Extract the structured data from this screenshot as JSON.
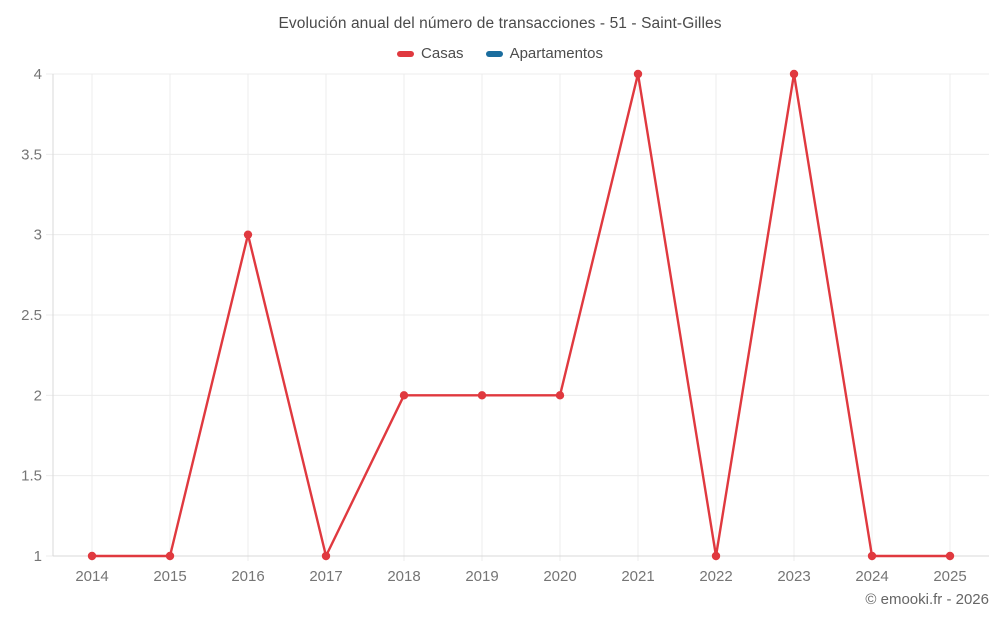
{
  "chart_data": {
    "type": "line",
    "title": "Evolución anual del número de transacciones - 51 - Saint-Gilles",
    "categories": [
      "2014",
      "2015",
      "2016",
      "2017",
      "2018",
      "2019",
      "2020",
      "2021",
      "2022",
      "2023",
      "2024",
      "2025"
    ],
    "series": [
      {
        "name": "Casas",
        "color": "#e0393f",
        "values": [
          1,
          1,
          3,
          1,
          2,
          2,
          2,
          4,
          1,
          4,
          1,
          1
        ]
      },
      {
        "name": "Apartamentos",
        "color": "#1a6d9e",
        "values": []
      }
    ],
    "ylim": [
      1,
      4
    ],
    "yticks": [
      "1",
      "1.5",
      "2",
      "2.5",
      "3",
      "3.5",
      "4"
    ],
    "grid": true,
    "legend_position": "top",
    "axis_color": "#d9d9d9",
    "gridline_color": "#ececec",
    "tick_label_color": "#757575"
  },
  "footer": {
    "copyright": "© emooki.fr - 2026"
  }
}
